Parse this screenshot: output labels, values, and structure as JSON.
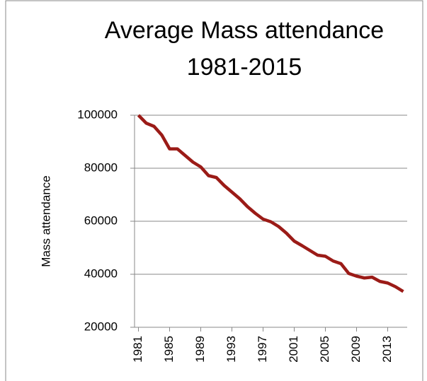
{
  "chart_data": {
    "type": "line",
    "title": "Average Mass attendance",
    "subtitle": "1981-2015",
    "y_label": "Mass attendance",
    "categories": [
      "1981",
      null,
      null,
      null,
      "1985",
      null,
      null,
      null,
      "1989",
      null,
      null,
      null,
      "1993",
      null,
      null,
      null,
      "1997",
      null,
      null,
      null,
      "2001",
      null,
      null,
      null,
      "2005",
      null,
      null,
      null,
      "2009",
      null,
      null,
      null,
      "2013",
      null,
      null
    ],
    "series": [
      {
        "name": "Mass attendance",
        "color": "#9b1b17",
        "values": [
          100000,
          97000,
          95800,
          92500,
          87300,
          87300,
          84800,
          82300,
          80500,
          77200,
          76500,
          73500,
          71000,
          68500,
          65500,
          63000,
          60800,
          59800,
          58000,
          55500,
          52500,
          50800,
          49000,
          47200,
          46800,
          45000,
          44000,
          40300,
          39300,
          38600,
          38900,
          37300,
          36700,
          35300,
          33500
        ]
      }
    ],
    "ylim": [
      20000,
      100000
    ],
    "yticks": [
      20000,
      40000,
      60000,
      80000,
      100000
    ],
    "grid": true
  }
}
